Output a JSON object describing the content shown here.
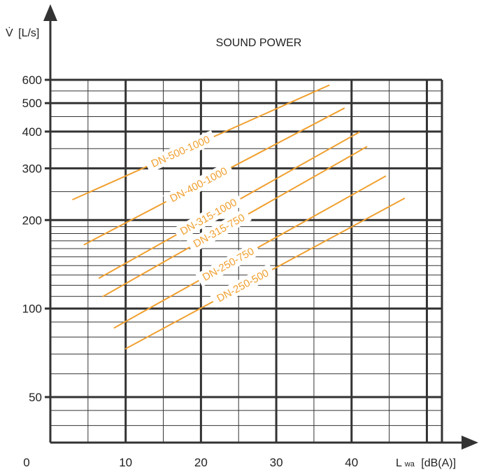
{
  "chart_data": {
    "type": "line",
    "title": "SOUND POWER",
    "ylabel": "V̇",
    "ylabel_unit": "[L/s]",
    "xlabel_main": "L",
    "xlabel_sub": "wa",
    "xlabel_unit": "[dB(A)]",
    "x_ticks": [
      "0",
      "10",
      "20",
      "30",
      "40"
    ],
    "y_ticks": [
      "50",
      "100",
      "200",
      "300",
      "400",
      "500",
      "600"
    ],
    "xlim": [
      0,
      52
    ],
    "ylim": [
      35,
      600
    ],
    "yscale": "log",
    "grid": true,
    "line_color": "#f0a030",
    "series": [
      {
        "name": "DN-500-1000",
        "x": [
          3,
          37
        ],
        "y": [
          235,
          575
        ]
      },
      {
        "name": "DN-400-1000",
        "x": [
          4.5,
          39
        ],
        "y": [
          165,
          480
        ]
      },
      {
        "name": "DN-315-1000",
        "x": [
          6.5,
          41
        ],
        "y": [
          127,
          398
        ]
      },
      {
        "name": "DN-315-750",
        "x": [
          7,
          42
        ],
        "y": [
          110,
          355
        ]
      },
      {
        "name": "DN-250-750",
        "x": [
          8.5,
          44.5
        ],
        "y": [
          86,
          282
        ]
      },
      {
        "name": "DN-250-500",
        "x": [
          10,
          47
        ],
        "y": [
          73,
          237
        ]
      }
    ]
  }
}
